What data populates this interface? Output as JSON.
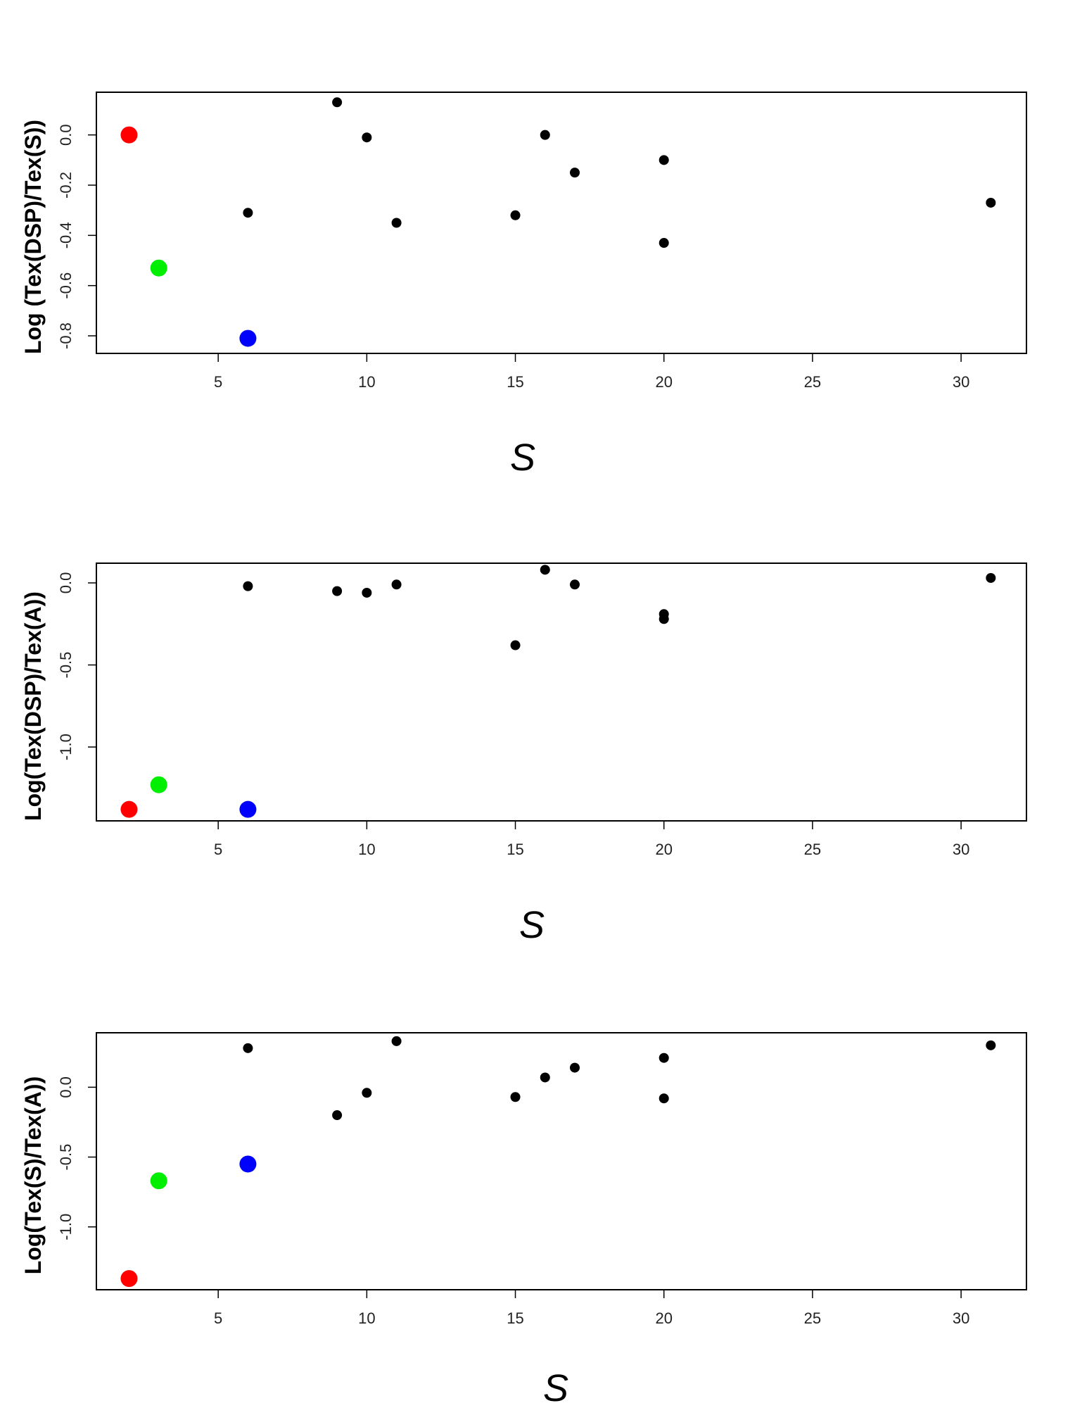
{
  "chart_data": [
    {
      "type": "scatter",
      "title": "",
      "xlabel": "S",
      "ylabel": "Log (Tex(DSP)/Tex(S))",
      "xticks": [
        5,
        10,
        15,
        20,
        25,
        30
      ],
      "xtick_labels": [
        "5",
        "10",
        "15",
        "20",
        "25",
        "30"
      ],
      "yticks": [
        0.0,
        -0.2,
        -0.4,
        -0.6,
        -0.8
      ],
      "ytick_labels": [
        "0.0",
        "-0.2",
        "-0.4",
        "-0.6",
        "-0.8"
      ],
      "xlim": [
        0.9,
        32.2
      ],
      "ylim": [
        -0.87,
        0.17
      ],
      "grid": false,
      "legend": "none",
      "series": [
        {
          "color": "#000000",
          "marker": "small",
          "x": [
            6,
            9,
            10,
            11,
            15,
            16,
            17,
            20,
            20,
            31
          ],
          "y": [
            -0.31,
            0.13,
            -0.01,
            -0.35,
            -0.32,
            0.0,
            -0.15,
            -0.1,
            -0.43,
            -0.27
          ]
        },
        {
          "color": "#ff0000",
          "marker": "large",
          "x": [
            2
          ],
          "y": [
            0.0
          ]
        },
        {
          "color": "#00ee00",
          "marker": "large",
          "x": [
            3
          ],
          "y": [
            -0.53
          ]
        },
        {
          "color": "#0000ff",
          "marker": "large",
          "x": [
            6
          ],
          "y": [
            -0.81
          ]
        }
      ]
    },
    {
      "type": "scatter",
      "title": "",
      "xlabel": "S",
      "ylabel": "Log(Tex(DSP)/Tex(A))",
      "xticks": [
        5,
        10,
        15,
        20,
        25,
        30
      ],
      "xtick_labels": [
        "5",
        "10",
        "15",
        "20",
        "25",
        "30"
      ],
      "yticks": [
        0.0,
        -0.5,
        -1.0
      ],
      "ytick_labels": [
        "0.0",
        "-0.5",
        "-1.0"
      ],
      "xlim": [
        0.9,
        32.2
      ],
      "ylim": [
        -1.45,
        0.12
      ],
      "grid": false,
      "legend": "none",
      "series": [
        {
          "color": "#000000",
          "marker": "small",
          "x": [
            6,
            9,
            10,
            11,
            15,
            16,
            17,
            20,
            20,
            31
          ],
          "y": [
            -0.02,
            -0.05,
            -0.06,
            -0.01,
            -0.38,
            0.08,
            -0.01,
            -0.19,
            -0.22,
            0.03
          ]
        },
        {
          "color": "#ff0000",
          "marker": "large",
          "x": [
            2
          ],
          "y": [
            -1.38
          ]
        },
        {
          "color": "#00ee00",
          "marker": "large",
          "x": [
            3
          ],
          "y": [
            -1.23
          ]
        },
        {
          "color": "#0000ff",
          "marker": "large",
          "x": [
            6
          ],
          "y": [
            -1.38
          ]
        }
      ]
    },
    {
      "type": "scatter",
      "title": "",
      "xlabel": "S",
      "ylabel": "Log(Tex(S)/Tex(A))",
      "xticks": [
        5,
        10,
        15,
        20,
        25,
        30
      ],
      "xtick_labels": [
        "5",
        "10",
        "15",
        "20",
        "25",
        "30"
      ],
      "yticks": [
        0.0,
        -0.5,
        -1.0
      ],
      "ytick_labels": [
        "0.0",
        "-0.5",
        "-1.0"
      ],
      "xlim": [
        0.9,
        32.2
      ],
      "ylim": [
        -1.45,
        0.39
      ],
      "grid": false,
      "legend": "none",
      "series": [
        {
          "color": "#000000",
          "marker": "small",
          "x": [
            6,
            9,
            10,
            11,
            15,
            16,
            17,
            20,
            20,
            31
          ],
          "y": [
            0.28,
            -0.2,
            -0.04,
            0.33,
            -0.07,
            0.07,
            0.14,
            0.21,
            -0.08,
            0.3
          ]
        },
        {
          "color": "#ff0000",
          "marker": "large",
          "x": [
            2
          ],
          "y": [
            -1.37
          ]
        },
        {
          "color": "#00ee00",
          "marker": "large",
          "x": [
            3
          ],
          "y": [
            -0.67
          ]
        },
        {
          "color": "#0000ff",
          "marker": "large",
          "x": [
            6
          ],
          "y": [
            -0.55
          ]
        }
      ]
    }
  ]
}
